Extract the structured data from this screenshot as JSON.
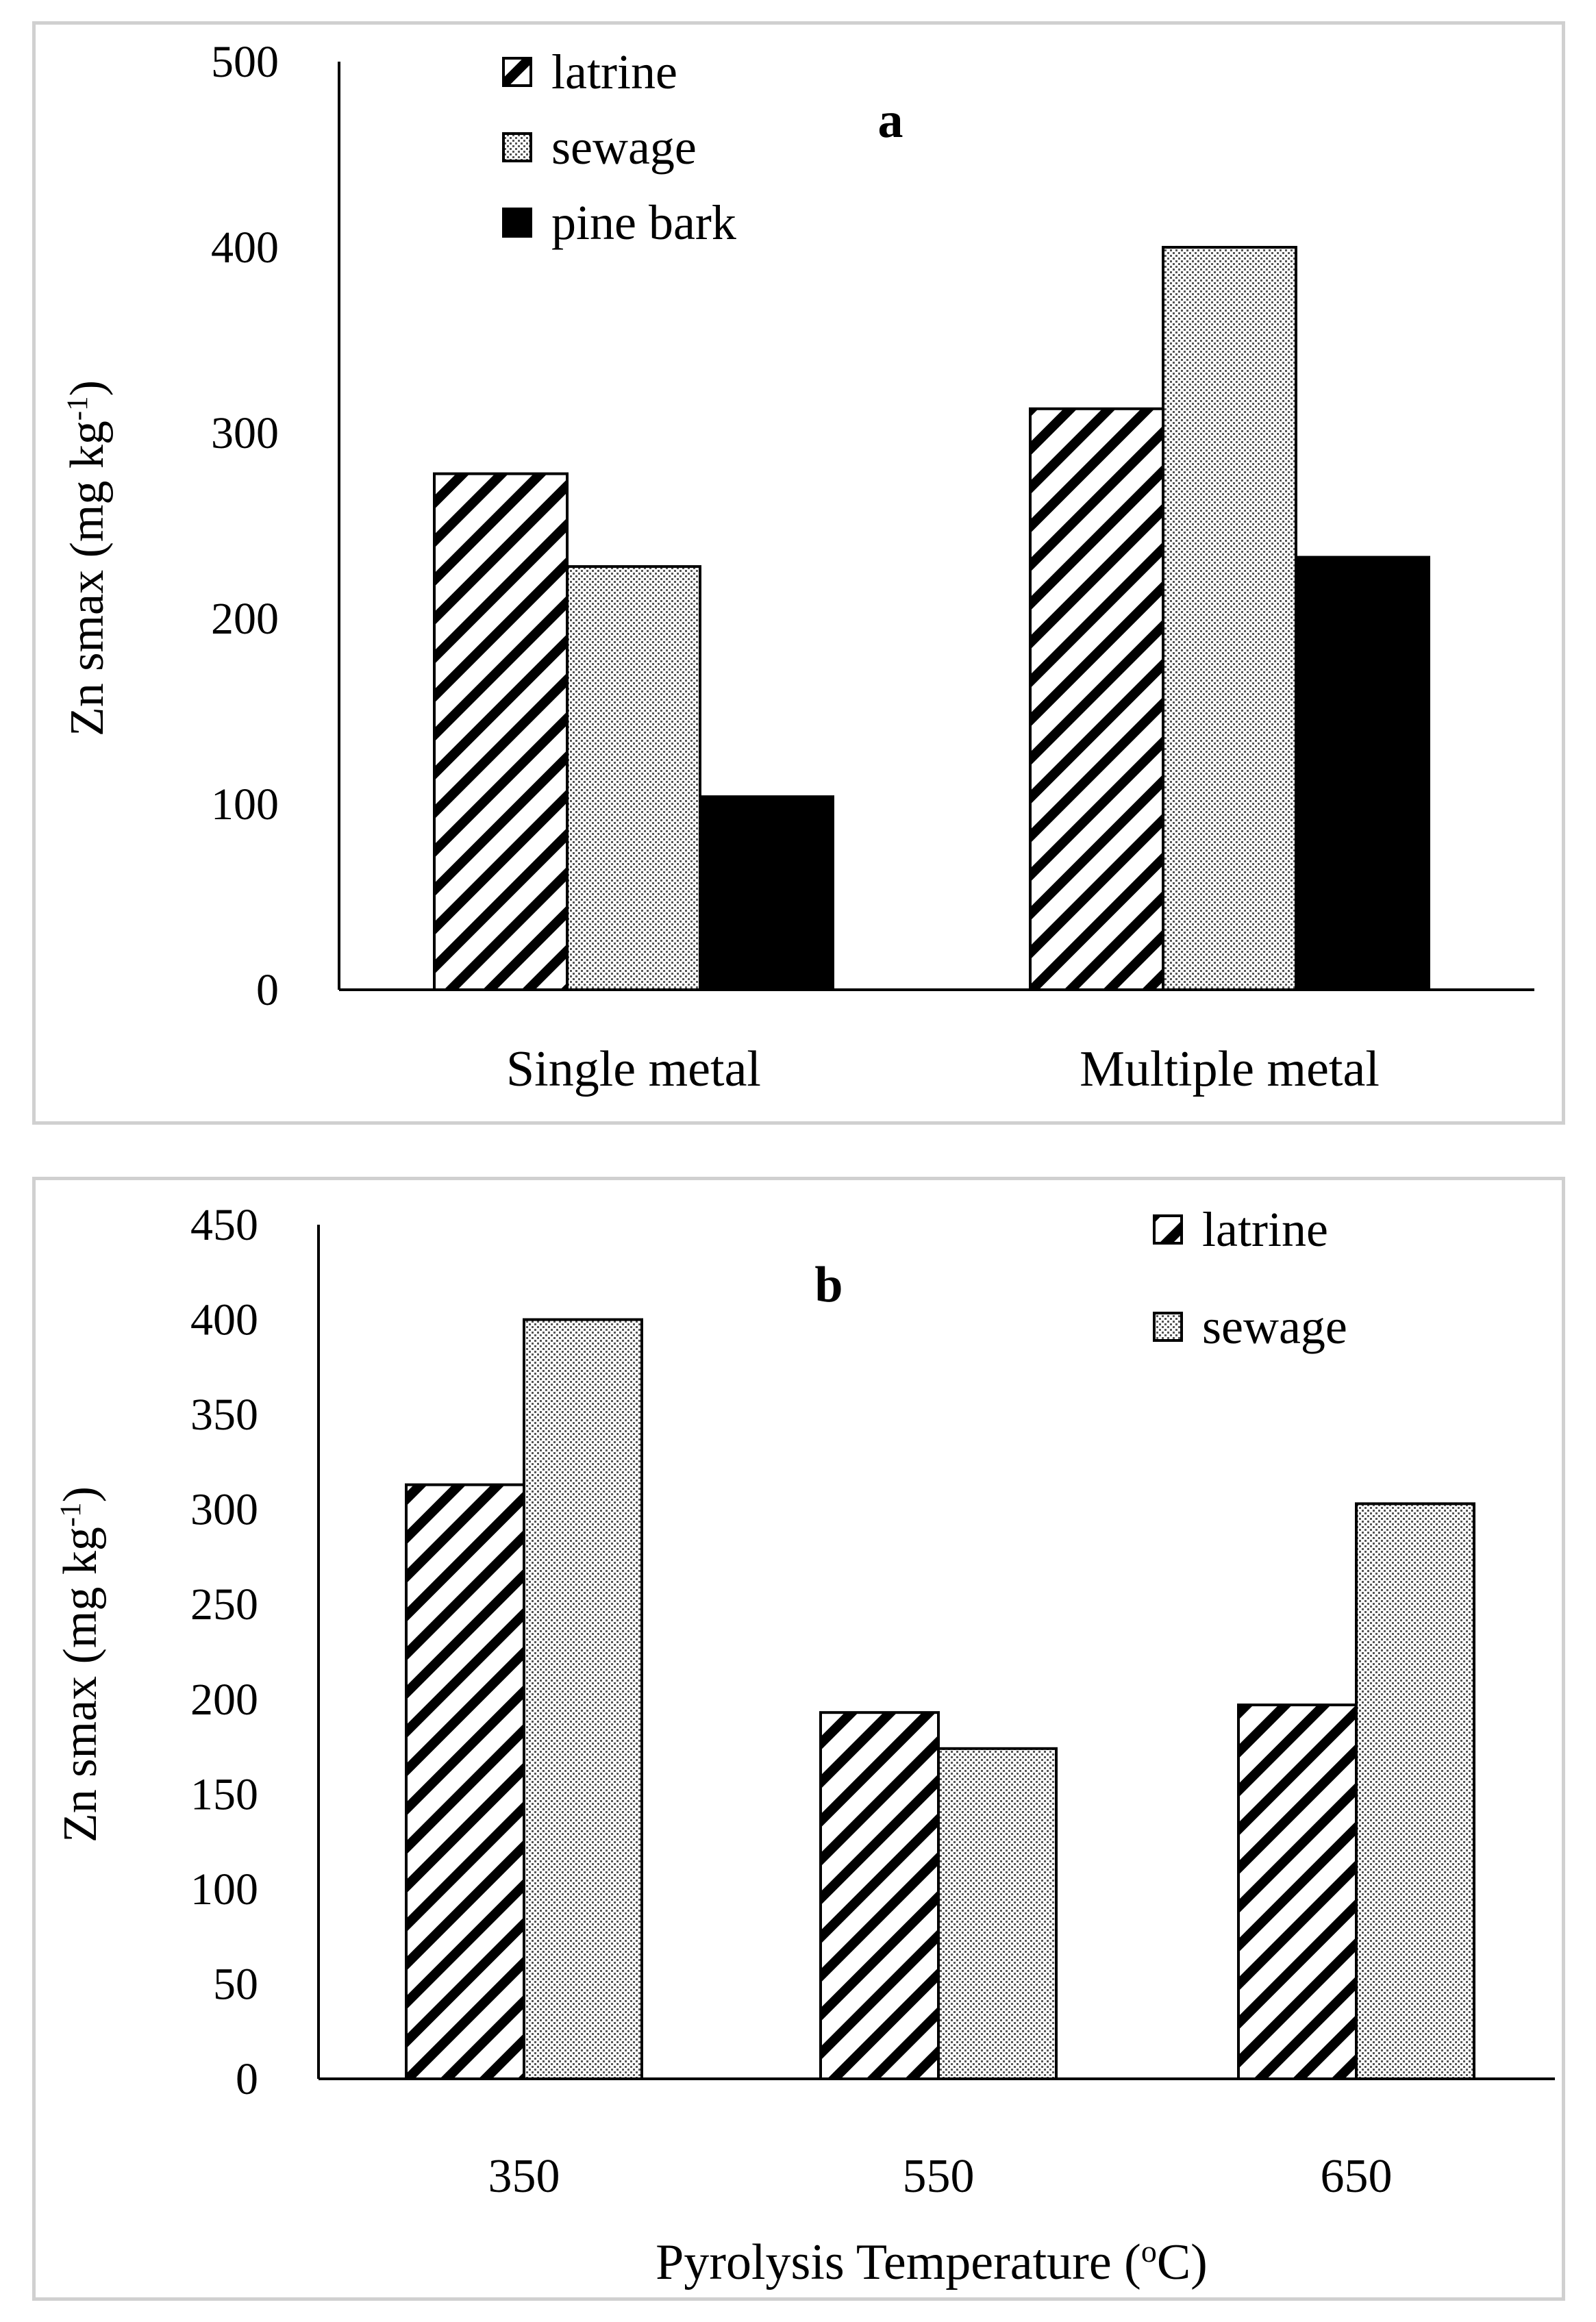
{
  "chart_data": [
    {
      "type": "bar",
      "panel_label": "a",
      "title": "",
      "xlabel": "",
      "ylabel": "Zn smax (mg kg",
      "ylabel_sup": "-1",
      "ylabel_close": ")",
      "ylim": [
        0,
        500
      ],
      "yticks": [
        0,
        100,
        200,
        300,
        400,
        500
      ],
      "categories": [
        "Single metal",
        "Multiple metal"
      ],
      "legend_position": "top-left",
      "series": [
        {
          "name": "latrine",
          "pattern": "diagonal",
          "values": [
            278,
            313
          ]
        },
        {
          "name": "sewage",
          "pattern": "dots",
          "values": [
            228,
            400
          ]
        },
        {
          "name": "pine bark",
          "pattern": "solid",
          "values": [
            104,
            233
          ]
        }
      ]
    },
    {
      "type": "bar",
      "panel_label": "b",
      "title": "",
      "xlabel": "Pyrolysis Temperature (",
      "xlabel_sup": "o",
      "xlabel_close": "C)",
      "ylabel": "Zn smax (mg kg",
      "ylabel_sup": "-1",
      "ylabel_close": ")",
      "ylim": [
        0,
        450
      ],
      "yticks": [
        0,
        50,
        100,
        150,
        200,
        250,
        300,
        350,
        400,
        450
      ],
      "categories": [
        "350",
        "550",
        "650"
      ],
      "legend_position": "top-right",
      "series": [
        {
          "name": "latrine",
          "pattern": "diagonal",
          "values": [
            313,
            193,
            197
          ]
        },
        {
          "name": "sewage",
          "pattern": "dots",
          "values": [
            400,
            174,
            303
          ]
        }
      ]
    }
  ]
}
